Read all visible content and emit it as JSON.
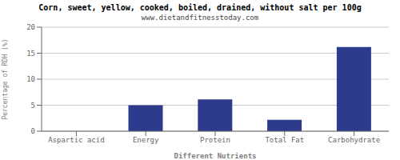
{
  "chart_data": {
    "type": "bar",
    "title": "Corn, sweet, yellow, cooked, boiled, drained, without salt per 100g",
    "subtitle": "www.dietandfitnesstoday.com",
    "categories": [
      "Aspartic acid",
      "Energy",
      "Protein",
      "Total Fat",
      "Carbohydrate"
    ],
    "values": [
      0.0,
      5.0,
      6.1,
      2.2,
      16.2
    ],
    "color": "#2d3b8c",
    "xlabel": "Different Nutrients",
    "ylabel": "Percentage of RDH (%)",
    "ylim": [
      0,
      20
    ],
    "yticks": [
      0,
      5,
      10,
      15,
      20
    ],
    "grid": true
  }
}
